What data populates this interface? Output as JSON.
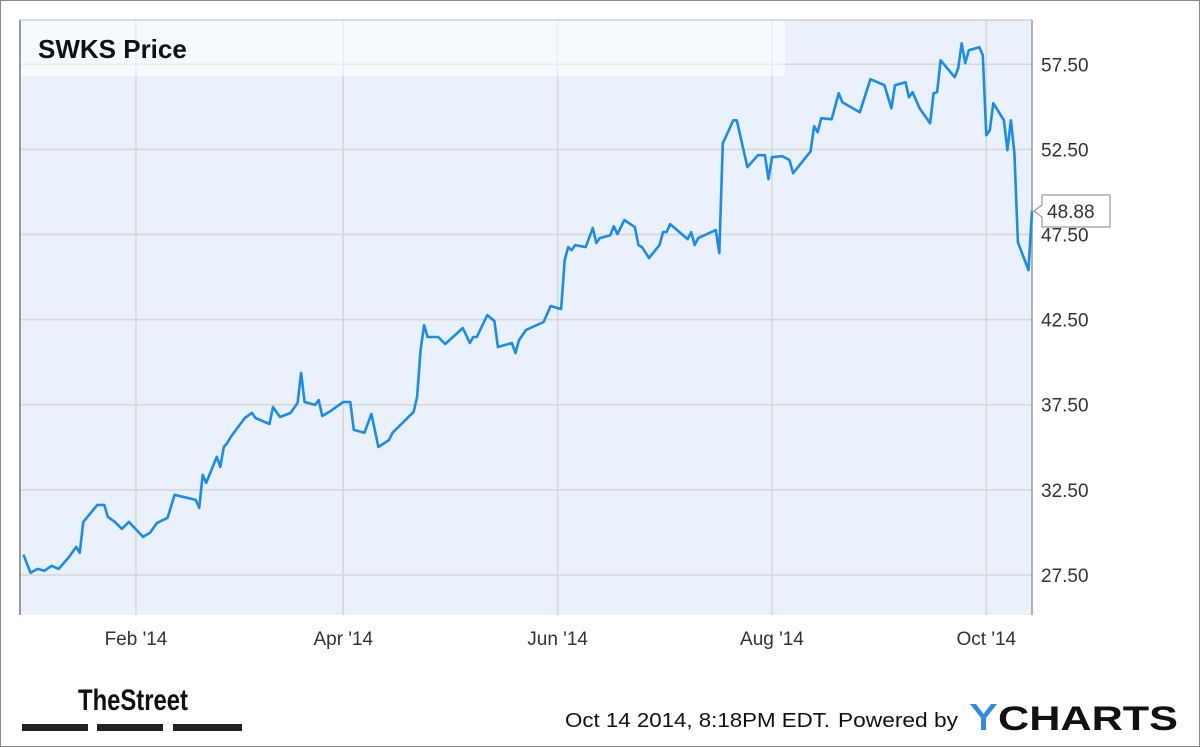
{
  "chart_data": {
    "type": "line",
    "title": "SWKS Price",
    "xlabel": "",
    "ylabel": "",
    "xlim": [
      "2013-12-30",
      "2014-10-14"
    ],
    "ylim": [
      25.15,
      60.1
    ],
    "y_axis_position": "right",
    "grid": true,
    "x_ticks": [
      {
        "date": "2014-02-01",
        "label": "Feb '14"
      },
      {
        "date": "2014-04-01",
        "label": "Apr '14"
      },
      {
        "date": "2014-06-01",
        "label": "Jun '14"
      },
      {
        "date": "2014-08-01",
        "label": "Aug '14"
      },
      {
        "date": "2014-10-01",
        "label": "Oct '14"
      }
    ],
    "y_ticks": [
      {
        "value": 27.5,
        "label": "27.50"
      },
      {
        "value": 32.5,
        "label": "32.50"
      },
      {
        "value": 37.5,
        "label": "37.50"
      },
      {
        "value": 42.5,
        "label": "42.50"
      },
      {
        "value": 47.5,
        "label": "47.50"
      },
      {
        "value": 52.5,
        "label": "52.50"
      },
      {
        "value": 57.5,
        "label": "57.50"
      }
    ],
    "last_value_label": "48.88",
    "colors": {
      "line": "#1a8cf0",
      "plot_background": "#eaf1fc",
      "grid": "#d6d6d6",
      "last_value_text": "#1a8cf0"
    },
    "series": [
      {
        "x": [
          "2013-12-31",
          "2014-01-02",
          "2014-01-04",
          "2014-01-06",
          "2014-01-08",
          "2014-01-10",
          "2014-01-13",
          "2014-01-15",
          "2014-01-16",
          "2014-01-17",
          "2014-01-21",
          "2014-01-23",
          "2014-01-24",
          "2014-01-26",
          "2014-01-28",
          "2014-01-30",
          "2014-02-03",
          "2014-02-05",
          "2014-02-07",
          "2014-02-10",
          "2014-02-12",
          "2014-02-18",
          "2014-02-19",
          "2014-02-20",
          "2014-02-21",
          "2014-02-24",
          "2014-02-25",
          "2014-02-26",
          "2014-02-27",
          "2014-02-28",
          "2014-03-04",
          "2014-03-06",
          "2014-03-07",
          "2014-03-11",
          "2014-03-12",
          "2014-03-14",
          "2014-03-17",
          "2014-03-19",
          "2014-03-20",
          "2014-03-21",
          "2014-03-24",
          "2014-03-25",
          "2014-03-26",
          "2014-03-28",
          "2014-04-01",
          "2014-04-03",
          "2014-04-04",
          "2014-04-07",
          "2014-04-09",
          "2014-04-11",
          "2014-04-14",
          "2014-04-15",
          "2014-04-21",
          "2014-04-22",
          "2014-04-23",
          "2014-04-24",
          "2014-04-25",
          "2014-04-28",
          "2014-04-30",
          "2014-05-05",
          "2014-05-07",
          "2014-05-08",
          "2014-05-09",
          "2014-05-12",
          "2014-05-14",
          "2014-05-15",
          "2014-05-19",
          "2014-05-20",
          "2014-05-21",
          "2014-05-23",
          "2014-05-28",
          "2014-05-30",
          "2014-06-02",
          "2014-06-03",
          "2014-06-04",
          "2014-06-05",
          "2014-06-06",
          "2014-06-09",
          "2014-06-11",
          "2014-06-12",
          "2014-06-13",
          "2014-06-16",
          "2014-06-17",
          "2014-06-18",
          "2014-06-20",
          "2014-06-23",
          "2014-06-24",
          "2014-06-25",
          "2014-06-27",
          "2014-06-30",
          "2014-07-01",
          "2014-07-02",
          "2014-07-03",
          "2014-07-08",
          "2014-07-09",
          "2014-07-10",
          "2014-07-11",
          "2014-07-16",
          "2014-07-17",
          "2014-07-18",
          "2014-07-21",
          "2014-07-22",
          "2014-07-25",
          "2014-07-28",
          "2014-07-30",
          "2014-07-31",
          "2014-08-01",
          "2014-08-04",
          "2014-08-06",
          "2014-08-07",
          "2014-08-12",
          "2014-08-13",
          "2014-08-14",
          "2014-08-15",
          "2014-08-18",
          "2014-08-20",
          "2014-08-21",
          "2014-08-26",
          "2014-08-29",
          "2014-09-02",
          "2014-09-04",
          "2014-09-05",
          "2014-09-08",
          "2014-09-09",
          "2014-09-10",
          "2014-09-12",
          "2014-09-15",
          "2014-09-16",
          "2014-09-17",
          "2014-09-18",
          "2014-09-22",
          "2014-09-23",
          "2014-09-24",
          "2014-09-25",
          "2014-09-26",
          "2014-09-29",
          "2014-09-30",
          "2014-10-01",
          "2014-10-02",
          "2014-10-03",
          "2014-10-06",
          "2014-10-07",
          "2014-10-08",
          "2014-10-09",
          "2014-10-10",
          "2014-10-13",
          "2014-10-14"
        ],
        "values": [
          28.69,
          27.63,
          27.86,
          27.75,
          28.04,
          27.86,
          28.57,
          29.15,
          28.8,
          30.62,
          31.62,
          31.62,
          30.92,
          30.62,
          30.21,
          30.62,
          29.74,
          29.98,
          30.56,
          30.86,
          32.21,
          31.91,
          31.44,
          33.38,
          32.91,
          34.44,
          33.85,
          35.02,
          35.26,
          35.61,
          36.73,
          37.02,
          36.73,
          36.37,
          37.37,
          36.78,
          37.02,
          37.61,
          39.37,
          37.66,
          37.49,
          37.78,
          36.84,
          37.08,
          37.66,
          37.66,
          36.02,
          35.85,
          36.96,
          35.02,
          35.43,
          35.85,
          37.08,
          37.96,
          40.72,
          42.18,
          41.48,
          41.48,
          41.07,
          42.01,
          41.13,
          41.48,
          41.48,
          42.77,
          42.42,
          40.89,
          41.13,
          40.54,
          41.3,
          41.89,
          42.36,
          43.3,
          43.12,
          46.0,
          46.76,
          46.58,
          46.88,
          46.76,
          47.88,
          47.0,
          47.29,
          47.46,
          47.99,
          47.52,
          48.35,
          47.93,
          46.88,
          46.76,
          46.12,
          46.88,
          47.64,
          47.64,
          48.11,
          47.23,
          47.64,
          46.88,
          47.29,
          47.76,
          46.41,
          52.86,
          54.21,
          54.21,
          51.46,
          52.16,
          52.16,
          50.75,
          52.04,
          52.1,
          51.87,
          51.1,
          52.39,
          53.86,
          53.51,
          54.33,
          54.27,
          55.8,
          55.27,
          54.68,
          56.62,
          56.27,
          54.92,
          56.27,
          56.44,
          55.56,
          55.86,
          54.92,
          54.04,
          55.8,
          55.86,
          57.73,
          56.74,
          57.27,
          58.73,
          57.56,
          58.32,
          58.5,
          58.03,
          53.33,
          53.63,
          55.21,
          54.21,
          52.45,
          54.21,
          52.28,
          47.05,
          45.41,
          48.88
        ]
      }
    ]
  },
  "footer": {
    "timestamp": "Oct 14 2014, 8:18PM EDT.",
    "powered_by": "Powered by",
    "ycharts_logo": "YCHARTS",
    "thestreet_logo": "TheStreet"
  }
}
